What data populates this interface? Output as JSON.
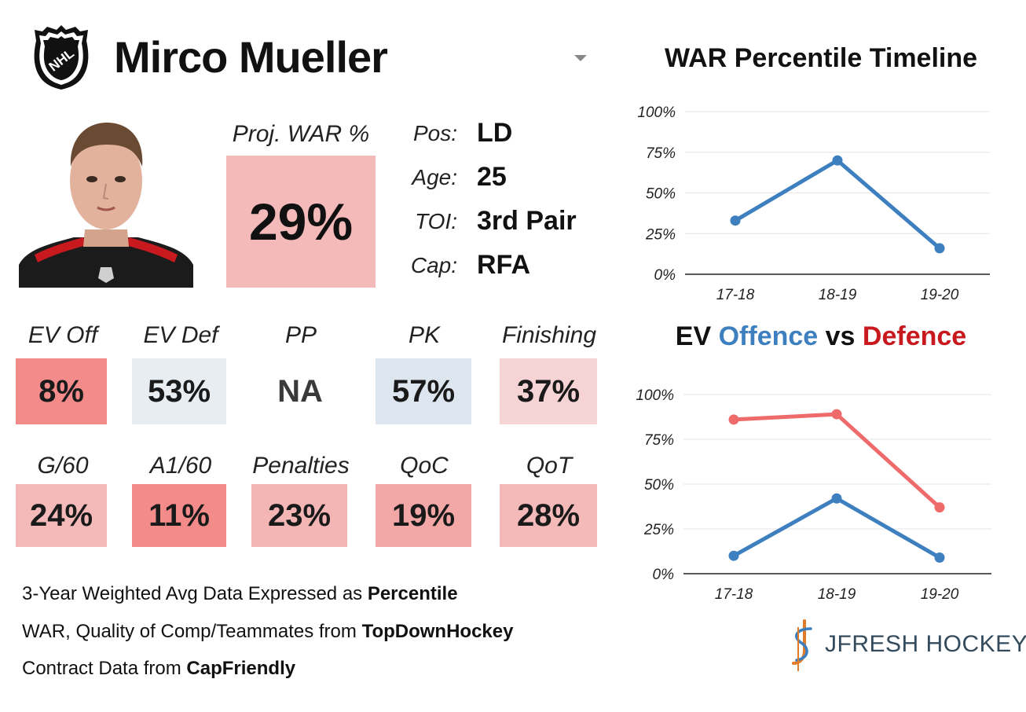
{
  "player": {
    "name": "Mirco Mueller"
  },
  "projection": {
    "label": "Proj. WAR %",
    "value": "29%",
    "color": "#f4b9b9"
  },
  "info": [
    {
      "label": "Pos:",
      "value": "LD"
    },
    {
      "label": "Age:",
      "value": "25"
    },
    {
      "label": "TOI:",
      "value": "3rd Pair"
    },
    {
      "label": "Cap:",
      "value": "RFA"
    }
  ],
  "metrics_row1": [
    {
      "label": "EV Off",
      "value": "8%",
      "color": "#f48b8b"
    },
    {
      "label": "EV Def",
      "value": "53%",
      "color": "#e8edf2"
    },
    {
      "label": "PP",
      "value": "NA",
      "color": "#ffffff"
    },
    {
      "label": "PK",
      "value": "57%",
      "color": "#dde6ee"
    },
    {
      "label": "Finishing",
      "value": "37%",
      "color": "#f6d3d4"
    }
  ],
  "metrics_row2": [
    {
      "label": "G/60",
      "value": "24%",
      "color": "#f4b9b9"
    },
    {
      "label": "A1/60",
      "value": "11%",
      "color": "#f48b8b"
    },
    {
      "label": "Penalties",
      "value": "23%",
      "color": "#f4b5b5"
    },
    {
      "label": "QoC",
      "value": "19%",
      "color": "#f4a7a7"
    },
    {
      "label": "QoT",
      "value": "28%",
      "color": "#f4b9b9"
    }
  ],
  "footer": {
    "line1_text": "3-Year Weighted Avg Data Expressed as ",
    "line1_bold": "Percentile",
    "line2_text": "WAR, Quality of Comp/Teammates from ",
    "line2_bold": "TopDownHockey",
    "line3_text": "Contract Data from ",
    "line3_bold": "CapFriendly"
  },
  "brand": {
    "name": "JFRESH HOCKEY",
    "colors": [
      "#e07b2a",
      "#3a7fbf"
    ]
  },
  "chart_data": [
    {
      "type": "line",
      "title": "WAR Percentile Timeline",
      "x": [
        "17-18",
        "18-19",
        "19-20"
      ],
      "series": [
        {
          "values": [
            33,
            70,
            16
          ],
          "color": "#3d7fbf"
        }
      ],
      "ylim": [
        0,
        100
      ],
      "yticks": [
        "0%",
        "25%",
        "50%",
        "75%",
        "100%"
      ],
      "grid": true
    },
    {
      "type": "line",
      "title_parts": [
        {
          "text": "EV ",
          "color": "#111111"
        },
        {
          "text": "Offence",
          "color": "#3d7fbf"
        },
        {
          "text": " vs ",
          "color": "#111111"
        },
        {
          "text": "Defence",
          "color": "#c8191e"
        }
      ],
      "x": [
        "17-18",
        "18-19",
        "19-20"
      ],
      "series": [
        {
          "name": "Offence",
          "values": [
            10,
            42,
            9
          ],
          "color": "#3d7fbf"
        },
        {
          "name": "Defence",
          "values": [
            86,
            89,
            37
          ],
          "color": "#ef6a6a"
        }
      ],
      "ylim": [
        0,
        100
      ],
      "yticks": [
        "0%",
        "25%",
        "50%",
        "75%",
        "100%"
      ],
      "grid": true
    }
  ]
}
